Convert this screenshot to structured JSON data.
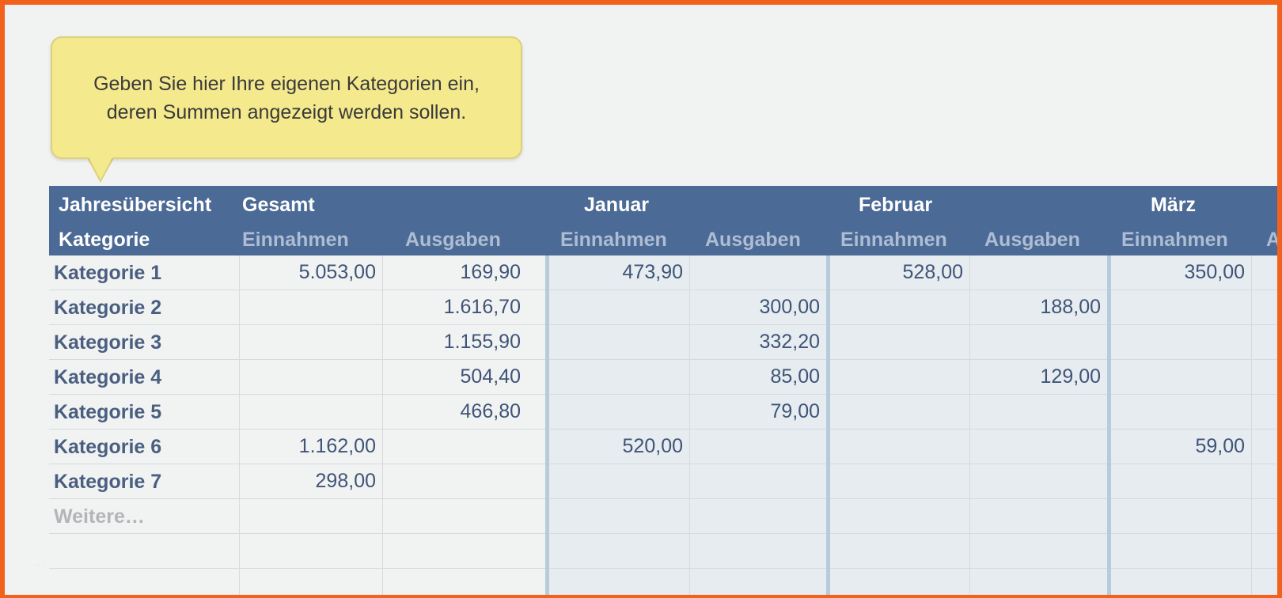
{
  "tooltip": {
    "line1": "Geben Sie hier Ihre eigenen Kategorien ein,",
    "line2": "deren Summen angezeigt werden sollen."
  },
  "header": {
    "overview": "Jahresübersicht",
    "category": "Kategorie",
    "total": "Gesamt",
    "months": [
      "Januar",
      "Februar",
      "März"
    ],
    "income": "Einnahmen",
    "expenses": "Ausgaben",
    "cut_off": "A"
  },
  "rows": [
    {
      "label": "Kategorie 1",
      "values": [
        "5.053,00",
        "169,90",
        "473,90",
        "",
        "528,00",
        "",
        "350,00"
      ]
    },
    {
      "label": "Kategorie 2",
      "values": [
        "",
        "1.616,70",
        "",
        "300,00",
        "",
        "188,00",
        ""
      ]
    },
    {
      "label": "Kategorie 3",
      "values": [
        "",
        "1.155,90",
        "",
        "332,20",
        "",
        "",
        ""
      ]
    },
    {
      "label": "Kategorie 4",
      "values": [
        "",
        "504,40",
        "",
        "85,00",
        "",
        "129,00",
        ""
      ]
    },
    {
      "label": "Kategorie 5",
      "values": [
        "",
        "466,80",
        "",
        "79,00",
        "",
        "",
        ""
      ]
    },
    {
      "label": "Kategorie 6",
      "values": [
        "1.162,00",
        "",
        "520,00",
        "",
        "",
        "",
        "59,00"
      ]
    },
    {
      "label": "Kategorie 7",
      "values": [
        "298,00",
        "",
        "",
        "",
        "",
        "",
        ""
      ]
    },
    {
      "label": "Weitere…",
      "values": [
        "",
        "",
        "",
        "",
        "",
        "",
        ""
      ],
      "placeholder": true
    },
    {
      "label": "",
      "values": [
        "",
        "",
        "",
        "",
        "",
        "",
        ""
      ]
    },
    {
      "label": "",
      "values": [
        "",
        "",
        "",
        "",
        "",
        "",
        ""
      ]
    }
  ],
  "colors": {
    "header_bg": "#4b6a95",
    "tooltip_bg": "#f5e98e",
    "frame_border": "#f2621c"
  }
}
